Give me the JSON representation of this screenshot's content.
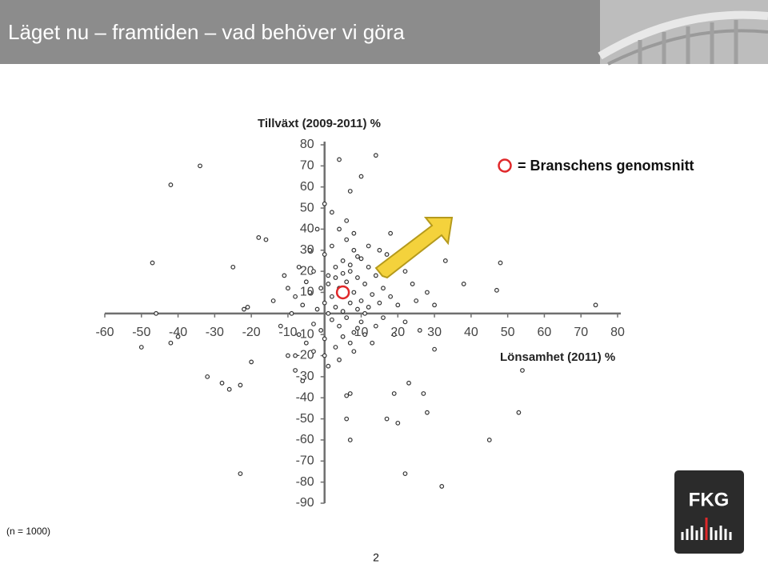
{
  "slide": {
    "title": "Läget nu – framtiden – vad behöver vi göra",
    "footnote": "(n = 1000)",
    "page_number": "2",
    "logo_text": "FKG"
  },
  "chart_data": {
    "type": "scatter",
    "y_label": "Tillväxt (2009-2011) %",
    "x_label": "Lönsamhet (2011) %",
    "xlim": [
      -60,
      80
    ],
    "ylim": [
      -90,
      80
    ],
    "xticks": [
      -60,
      -50,
      -40,
      -30,
      -20,
      -10,
      10,
      20,
      30,
      40,
      50,
      60,
      70,
      80
    ],
    "yticks": [
      -90,
      -80,
      -70,
      -60,
      -50,
      -40,
      -30,
      -20,
      -10,
      10,
      20,
      30,
      40,
      50,
      60,
      70,
      80
    ],
    "series": [
      {
        "color": "#333333",
        "x": [
          0,
          2,
          4,
          6,
          8,
          10,
          12,
          -2,
          -4,
          1,
          3,
          5,
          7,
          9,
          11,
          13,
          15,
          -3,
          -1,
          2,
          4,
          6,
          8,
          10,
          -6,
          -8,
          -5,
          -3,
          0,
          2,
          6,
          8,
          10,
          12,
          14,
          16,
          18,
          20,
          16,
          14,
          -7,
          -5,
          0,
          3,
          5,
          7,
          9,
          11,
          1,
          3,
          5,
          7,
          9,
          11,
          -1,
          1,
          3,
          5,
          7,
          9,
          -9,
          -10,
          -7,
          -4,
          4,
          6,
          8,
          12,
          17,
          22,
          24,
          25,
          22,
          19,
          13,
          -12,
          -14,
          -11,
          18,
          -2,
          0,
          4,
          8,
          -3,
          28,
          30,
          26,
          15,
          -8,
          2,
          -34,
          -42,
          -47,
          -18,
          -16,
          -25,
          -21,
          -22,
          -46,
          -50,
          -42,
          -40,
          -32,
          -28,
          -26,
          -23,
          -20,
          -23,
          4,
          14,
          10,
          7,
          0,
          38,
          48,
          47,
          74,
          33,
          30,
          54,
          53,
          45,
          32,
          22,
          27,
          28,
          23,
          20,
          17,
          19,
          7,
          6,
          6,
          7,
          1,
          -6,
          -8,
          -10
        ],
        "y": [
          5,
          8,
          12,
          15,
          10,
          6,
          3,
          2,
          10,
          18,
          22,
          25,
          20,
          17,
          14,
          9,
          5,
          -5,
          -8,
          -3,
          -6,
          -2,
          -9,
          -4,
          4,
          8,
          15,
          20,
          28,
          32,
          35,
          30,
          26,
          22,
          18,
          12,
          8,
          4,
          -2,
          -6,
          -10,
          -14,
          -12,
          -16,
          -11,
          -14,
          -7,
          -10,
          0,
          3,
          1,
          5,
          2,
          0,
          12,
          14,
          17,
          19,
          23,
          27,
          0,
          12,
          22,
          30,
          40,
          44,
          38,
          32,
          28,
          20,
          14,
          6,
          -4,
          -10,
          -14,
          -6,
          6,
          18,
          38,
          40,
          -20,
          -22,
          -18,
          -18,
          10,
          4,
          -8,
          30,
          -20,
          48,
          70,
          61,
          24,
          36,
          35,
          22,
          3,
          2,
          0,
          -16,
          -14,
          -11,
          -30,
          -33,
          -36,
          -34,
          -23,
          -76,
          73,
          75,
          65,
          58,
          52,
          14,
          24,
          11,
          4,
          25,
          -17,
          -27,
          -47,
          -60,
          -82,
          -76,
          -38,
          -47,
          -33,
          -52,
          -50,
          -38,
          -60,
          -39,
          -50,
          -38,
          -25,
          -32,
          -27,
          -20
        ]
      },
      {
        "name": "= Branschens genomsnitt",
        "color": "#e0282a",
        "x": [
          5
        ],
        "y": [
          10
        ]
      }
    ]
  }
}
